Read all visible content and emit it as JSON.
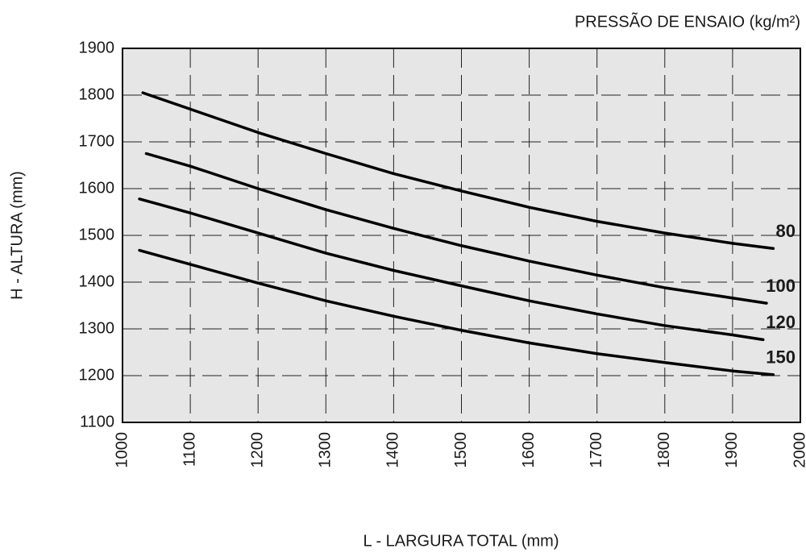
{
  "chart_data": {
    "type": "line",
    "title": "PRESSÃO DE ENSAIO (kg/m²)",
    "xlabel": "L - LARGURA TOTAL (mm)",
    "ylabel": "H - ALTURA (mm)",
    "xlim": [
      1000,
      2000
    ],
    "xticks": [
      1000,
      1100,
      1200,
      1300,
      1400,
      1500,
      1600,
      1700,
      1800,
      1900,
      2000
    ],
    "ylim": [
      1100,
      1900
    ],
    "yticks": [
      1100,
      1200,
      1300,
      1400,
      1500,
      1600,
      1700,
      1800,
      1900
    ],
    "grid": true,
    "series": [
      {
        "name": "80",
        "color": "#000000",
        "x": [
          1030,
          1100,
          1200,
          1300,
          1400,
          1500,
          1600,
          1700,
          1800,
          1900,
          1960
        ],
        "values": [
          1805,
          1770,
          1720,
          1675,
          1632,
          1595,
          1560,
          1530,
          1505,
          1483,
          1472
        ]
      },
      {
        "name": "100",
        "color": "#000000",
        "x": [
          1035,
          1100,
          1200,
          1300,
          1400,
          1500,
          1600,
          1700,
          1800,
          1900,
          1950
        ],
        "values": [
          1675,
          1648,
          1600,
          1555,
          1515,
          1478,
          1445,
          1415,
          1388,
          1366,
          1355
        ]
      },
      {
        "name": "120",
        "color": "#000000",
        "x": [
          1025,
          1100,
          1200,
          1300,
          1400,
          1500,
          1600,
          1700,
          1800,
          1900,
          1945
        ],
        "values": [
          1578,
          1548,
          1505,
          1462,
          1425,
          1392,
          1360,
          1332,
          1307,
          1287,
          1277
        ]
      },
      {
        "name": "150",
        "color": "#000000",
        "x": [
          1025,
          1100,
          1200,
          1300,
          1400,
          1500,
          1600,
          1700,
          1800,
          1900,
          1960
        ],
        "values": [
          1468,
          1438,
          1398,
          1360,
          1327,
          1297,
          1270,
          1247,
          1228,
          1210,
          1202
        ]
      }
    ]
  }
}
